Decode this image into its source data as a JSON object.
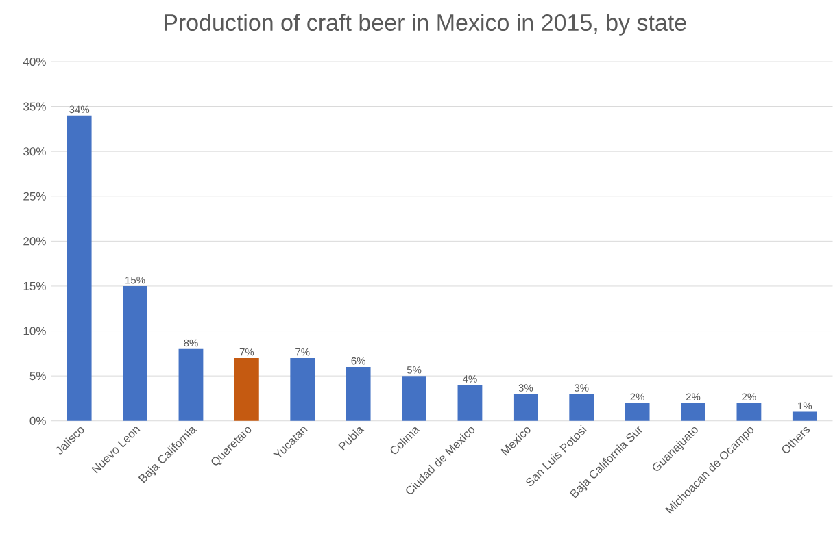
{
  "chart_data": {
    "type": "bar",
    "title": "Production of craft beer in Mexico in 2015, by state",
    "categories": [
      "Jalisco",
      "Nuevo Leon",
      "Baja California",
      "Queretaro",
      "Yucatan",
      "Publa",
      "Colima",
      "Ciudad de Mexico",
      "Mexico",
      "San Luis Potosi",
      "Baja California Sur",
      "Guanajuato",
      "Michoacan de Ocampo",
      "Others"
    ],
    "values": [
      34,
      15,
      8,
      7,
      7,
      6,
      5,
      4,
      3,
      3,
      2,
      2,
      2,
      1
    ],
    "value_labels": [
      "34%",
      "15%",
      "8%",
      "7%",
      "7%",
      "6%",
      "5%",
      "4%",
      "3%",
      "3%",
      "2%",
      "2%",
      "2%",
      "1%"
    ],
    "colors": [
      "#4472c4",
      "#4472c4",
      "#4472c4",
      "#c55a11",
      "#4472c4",
      "#4472c4",
      "#4472c4",
      "#4472c4",
      "#4472c4",
      "#4472c4",
      "#4472c4",
      "#4472c4",
      "#4472c4",
      "#4472c4"
    ],
    "ylim": [
      0,
      40
    ],
    "yticks": [
      {
        "value": 0,
        "label": "0%"
      },
      {
        "value": 5,
        "label": "5%"
      },
      {
        "value": 10,
        "label": "10%"
      },
      {
        "value": 15,
        "label": "15%"
      },
      {
        "value": 20,
        "label": "20%"
      },
      {
        "value": 25,
        "label": "25%"
      },
      {
        "value": 30,
        "label": "30%"
      },
      {
        "value": 35,
        "label": "35%"
      },
      {
        "value": 40,
        "label": "40%"
      }
    ],
    "grid": "y"
  }
}
